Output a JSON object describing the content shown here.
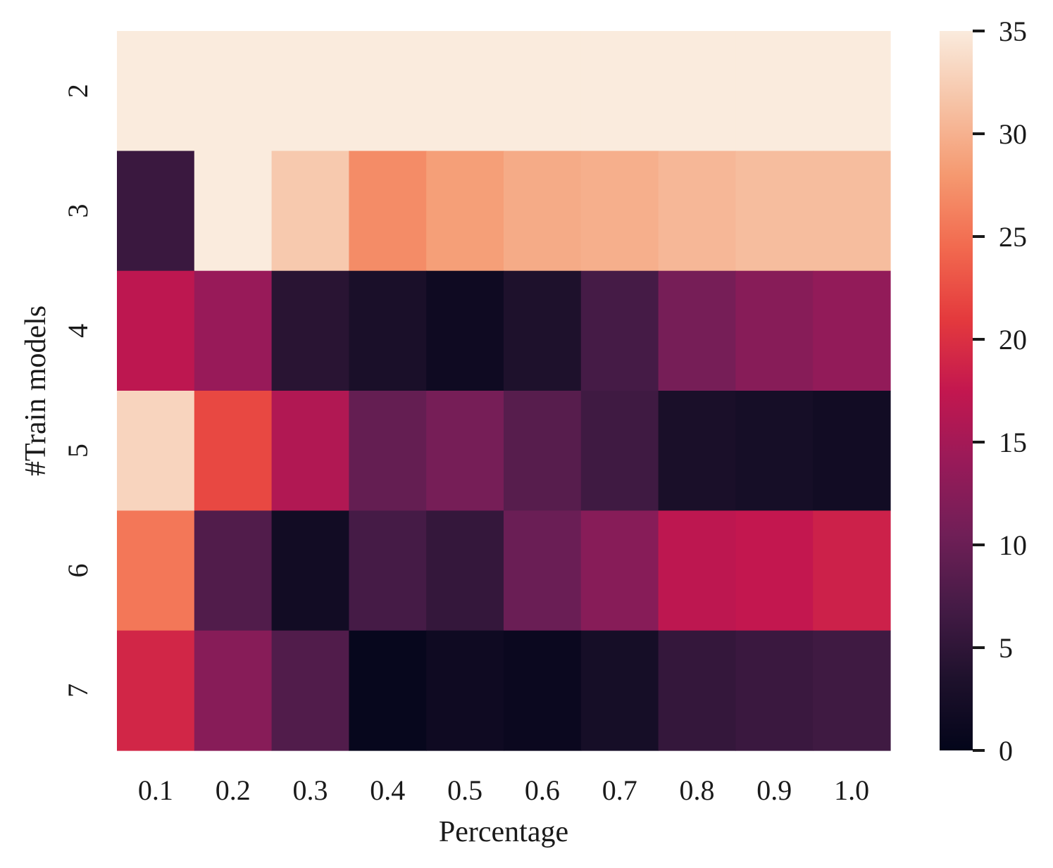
{
  "chart_data": {
    "type": "heatmap",
    "xlabel": "Percentage",
    "ylabel": "#Train models",
    "x_categories": [
      "0.1",
      "0.2",
      "0.3",
      "0.4",
      "0.5",
      "0.6",
      "0.7",
      "0.8",
      "0.9",
      "1.0"
    ],
    "y_categories": [
      "2",
      "3",
      "4",
      "5",
      "6",
      "7"
    ],
    "values": [
      [
        35,
        35,
        35,
        35,
        35,
        35,
        35,
        35,
        35,
        35
      ],
      [
        6,
        35,
        32,
        27,
        28.5,
        29.5,
        29.8,
        30.5,
        31,
        31
      ],
      [
        17,
        14,
        4.5,
        3,
        1.5,
        3.5,
        7,
        11,
        12.5,
        13.5
      ],
      [
        33,
        22,
        16,
        9.5,
        11,
        8.5,
        6.5,
        3,
        2.5,
        2
      ],
      [
        25.5,
        8,
        2,
        7,
        5.5,
        10,
        12.5,
        17,
        17.5,
        18.5
      ],
      [
        19,
        12.5,
        8,
        0.5,
        1.5,
        1,
        2.5,
        5.5,
        6,
        6.5
      ]
    ],
    "colorbar": {
      "range": [
        0,
        35
      ],
      "ticks": [
        "0",
        "5",
        "10",
        "15",
        "20",
        "25",
        "30",
        "35"
      ],
      "colormap": "rocket"
    }
  }
}
